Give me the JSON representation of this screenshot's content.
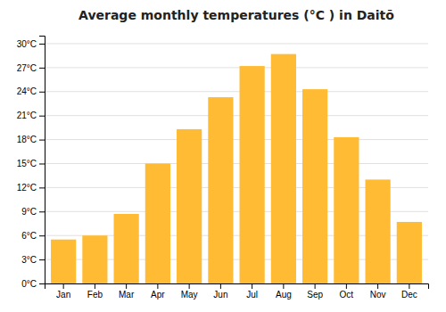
{
  "chart_data": {
    "type": "bar",
    "title": "Average monthly temperatures (°C ) in Daitō",
    "categories": [
      "Jan",
      "Feb",
      "Mar",
      "Apr",
      "May",
      "Jun",
      "Jul",
      "Aug",
      "Sep",
      "Oct",
      "Nov",
      "Dec"
    ],
    "values": [
      5.5,
      6.0,
      8.7,
      15.0,
      19.3,
      23.3,
      27.2,
      28.7,
      24.3,
      18.3,
      13.0,
      7.7
    ],
    "color": "#FFBB33",
    "ylim": [
      0,
      31
    ],
    "yticks": [
      {
        "value": 0,
        "label": "0°C"
      },
      {
        "value": 3,
        "label": "3°C"
      },
      {
        "value": 6,
        "label": "6°C"
      },
      {
        "value": 9,
        "label": "9°C"
      },
      {
        "value": 12,
        "label": "12°C"
      },
      {
        "value": 15,
        "label": "15°C"
      },
      {
        "value": 18,
        "label": "18°C"
      },
      {
        "value": 21,
        "label": "21°C"
      },
      {
        "value": 24,
        "label": "24°C"
      },
      {
        "value": 27,
        "label": "27°C"
      },
      {
        "value": 30,
        "label": "30°C"
      }
    ],
    "grid": true
  }
}
